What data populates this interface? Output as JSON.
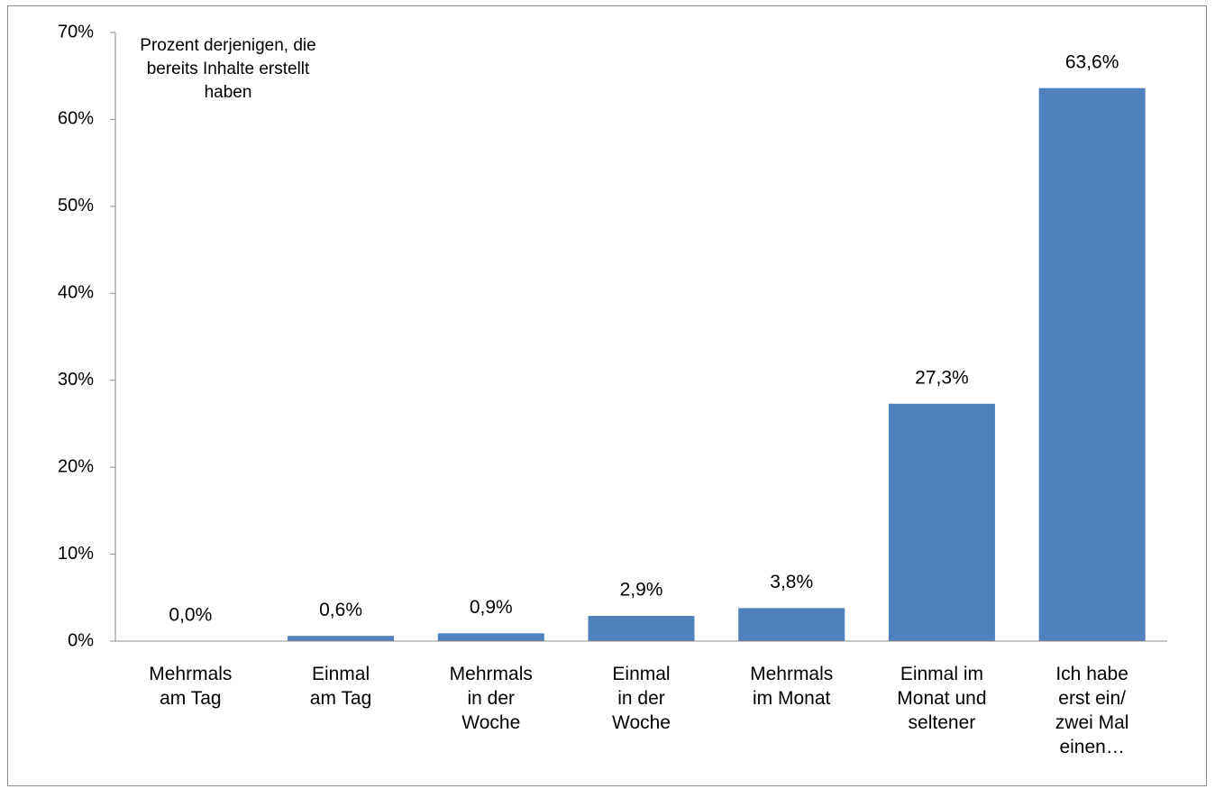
{
  "chart_data": {
    "type": "bar",
    "annotation": "Prozent derjenigen, die\nbereits Inhalte erstellt\nhaben",
    "categories": [
      "Mehrmals\nam Tag",
      "Einmal\nam Tag",
      "Mehrmals\nin der\nWoche",
      "Einmal\nin der\nWoche",
      "Mehrmals\nim Monat",
      "Einmal im\nMonat und\nseltener",
      "Ich habe\nerst ein/\nzwei Mal\neinen…"
    ],
    "values": [
      0.0,
      0.6,
      0.9,
      2.9,
      3.8,
      27.3,
      63.6
    ],
    "value_labels": [
      "0,0%",
      "0,6%",
      "0,9%",
      "2,9%",
      "3,8%",
      "27,3%",
      "63,6%"
    ],
    "color": "#4f81bd",
    "ylim": [
      0,
      70
    ],
    "yticks": [
      {
        "value": 0,
        "label": "0%"
      },
      {
        "value": 10,
        "label": "10%"
      },
      {
        "value": 20,
        "label": "20%"
      },
      {
        "value": 30,
        "label": "30%"
      },
      {
        "value": 40,
        "label": "40%"
      },
      {
        "value": 50,
        "label": "50%"
      },
      {
        "value": 60,
        "label": "60%"
      },
      {
        "value": 70,
        "label": "70%"
      }
    ],
    "grid": false
  }
}
